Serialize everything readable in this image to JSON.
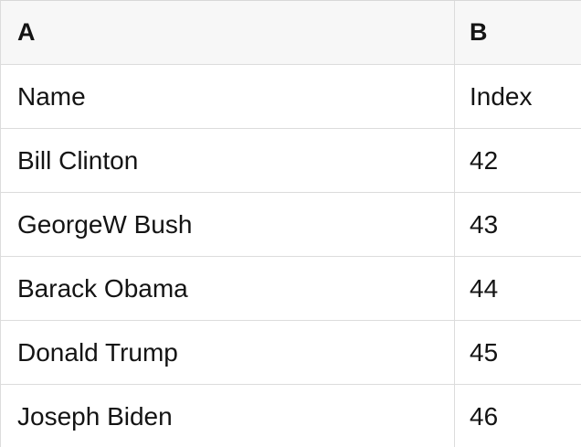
{
  "table": {
    "column_headers": [
      "A",
      "B"
    ],
    "rows": [
      {
        "a": "Name",
        "b": "Index"
      },
      {
        "a": "Bill Clinton",
        "b": "42"
      },
      {
        "a": "GeorgeW Bush",
        "b": "43"
      },
      {
        "a": "Barack Obama",
        "b": "44"
      },
      {
        "a": "Donald Trump",
        "b": "45"
      },
      {
        "a": "Joseph Biden",
        "b": "46"
      }
    ],
    "colors": {
      "header_background": "#f7f7f7",
      "border": "#dcdcdc",
      "text": "#141414"
    }
  }
}
